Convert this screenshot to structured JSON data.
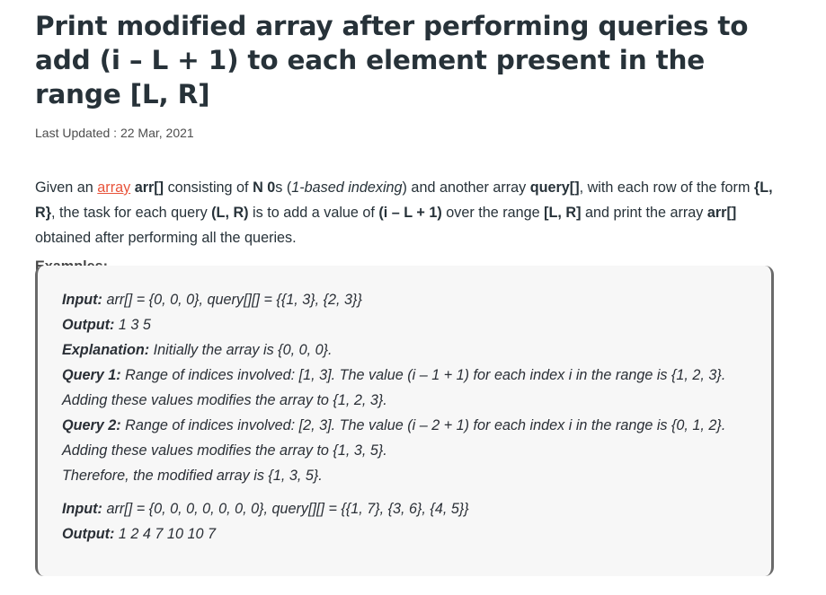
{
  "article": {
    "title": "Print modified array after performing queries to add (i – L + 1) to each element present in the range [L, R]",
    "last_updated": "Last Updated : 22 Mar, 2021",
    "intro": {
      "t1": "Given an ",
      "link": "array",
      "t2": " ",
      "b1": "arr[]",
      "t3": " consisting of ",
      "b2": "N 0",
      "t4": "s (",
      "i1": "1-based indexing",
      "t5": ") and another array ",
      "b3": "query[]",
      "t6": ", with each row of the form ",
      "b4": "{L, R}",
      "t7": ", the task for each query ",
      "b5": "(L, R)",
      "t8": " is to add a value of ",
      "b6": "(i – L + 1)",
      "t9": " over the range ",
      "b7": "[L, R]",
      "t10": " and print the array ",
      "b8": "arr[]",
      "t11": " obtained after performing all the queries."
    },
    "examples_label": "Examples:"
  },
  "example": {
    "input1_label": "Input:",
    "input1_text": " arr[] = {0, 0, 0}, query[][] = {{1, 3}, {2, 3}}",
    "output1_label": "Output:",
    "output1_text": " 1 3 5",
    "explanation_label": "Explanation:",
    "explanation_text": " Initially the array is {0, 0, 0}.",
    "query1_label": "Query 1:",
    "query1_text": " Range of indices involved: [1, 3]. The value (i – 1 + 1) for each index i in the range is {1, 2, 3}. Adding these values modifies the array to {1, 2, 3}.",
    "query2_label": "Query 2:",
    "query2_text": " Range of indices involved: [2, 3]. The value (i – 2 + 1) for each index i in the range is {0, 1, 2}. Adding these values modifies the array to {1, 3, 5}.",
    "therefore_text": "Therefore, the modified array is {1, 3, 5}.",
    "input2_label": "Input:",
    "input2_text": " arr[] = {0, 0, 0, 0, 0, 0, 0}, query[][] = {{1, 7}, {3, 6}, {4, 5}}",
    "output2_label": "Output:",
    "output2_text": " 1 2 4 7 10 10 7"
  }
}
